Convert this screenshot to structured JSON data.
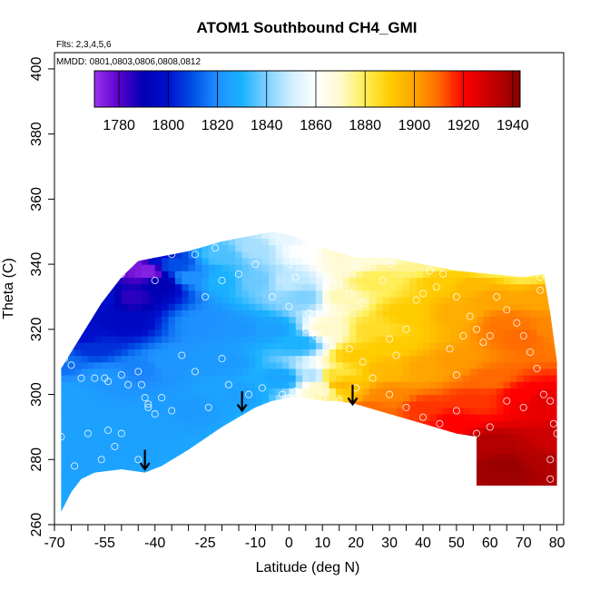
{
  "chart_data": {
    "type": "heatmap",
    "title": "ATOM1 Southbound CH4_GMI",
    "annotations": {
      "flights": "Flts: 2,3,4,5,6",
      "dates": "MMDD: 0801,0803,0806,0808,0812"
    },
    "xlabel": "Latitude (deg N)",
    "ylabel": "Theta (C)",
    "xlim": [
      -70,
      82
    ],
    "ylim": [
      260,
      405
    ],
    "x_tick_labels": [
      {
        "v": -70,
        "label": "-70"
      },
      {
        "v": -55,
        "label": "-55"
      },
      {
        "v": -40,
        "label": "-40"
      },
      {
        "v": -25,
        "label": "-25"
      },
      {
        "v": -10,
        "label": "-10"
      },
      {
        "v": 0,
        "label": "0"
      },
      {
        "v": 10,
        "label": "10"
      },
      {
        "v": 20,
        "label": "20"
      },
      {
        "v": 30,
        "label": "30"
      },
      {
        "v": 40,
        "label": "40"
      },
      {
        "v": 50,
        "label": "50"
      },
      {
        "v": 60,
        "label": "60"
      },
      {
        "v": 70,
        "label": "70"
      },
      {
        "v": 80,
        "label": "80"
      }
    ],
    "x_minor_ticks": [
      -65,
      -60,
      -50,
      -45,
      -35,
      -30,
      -20,
      -15,
      -5,
      5,
      15,
      25,
      35,
      45,
      55,
      65,
      75
    ],
    "y_tick_labels": [
      {
        "v": 260,
        "label": "260"
      },
      {
        "v": 280,
        "label": "280"
      },
      {
        "v": 300,
        "label": "300"
      },
      {
        "v": 320,
        "label": "320"
      },
      {
        "v": 340,
        "label": "340"
      },
      {
        "v": 360,
        "label": "360"
      },
      {
        "v": 380,
        "label": "380"
      },
      {
        "v": 400,
        "label": "400"
      }
    ],
    "colorbar": {
      "min": 1770,
      "max": 1943,
      "stops": [
        {
          "v": 1770,
          "c": "#9a33ee"
        },
        {
          "v": 1780,
          "c": "#5a00cc"
        },
        {
          "v": 1790,
          "c": "#0000b5"
        },
        {
          "v": 1800,
          "c": "#0010cc"
        },
        {
          "v": 1810,
          "c": "#0050e6"
        },
        {
          "v": 1820,
          "c": "#1e90ff"
        },
        {
          "v": 1830,
          "c": "#1ab2ff"
        },
        {
          "v": 1840,
          "c": "#7fd0ff"
        },
        {
          "v": 1850,
          "c": "#d0efff"
        },
        {
          "v": 1860,
          "c": "#ffffff"
        },
        {
          "v": 1870,
          "c": "#fffacd"
        },
        {
          "v": 1880,
          "c": "#ffee55"
        },
        {
          "v": 1890,
          "c": "#ffcc00"
        },
        {
          "v": 1900,
          "c": "#ffa500"
        },
        {
          "v": 1910,
          "c": "#ff6a00"
        },
        {
          "v": 1920,
          "c": "#ff0000"
        },
        {
          "v": 1930,
          "c": "#cc0000"
        },
        {
          "v": 1943,
          "c": "#8b0000"
        }
      ],
      "tick_labels": [
        {
          "v": 1780,
          "label": "1780"
        },
        {
          "v": 1800,
          "label": "1800"
        },
        {
          "v": 1820,
          "label": "1820"
        },
        {
          "v": 1840,
          "label": "1840"
        },
        {
          "v": 1860,
          "label": "1860"
        },
        {
          "v": 1880,
          "label": "1880"
        },
        {
          "v": 1900,
          "label": "1900"
        },
        {
          "v": 1920,
          "label": "1920"
        },
        {
          "v": 1940,
          "label": "1940"
        }
      ],
      "divider_values": [
        1780,
        1800,
        1820,
        1840,
        1860,
        1880,
        1900,
        1920,
        1940
      ]
    },
    "field": {
      "x_range": [
        -70,
        80
      ],
      "y_range": [
        264,
        352
      ],
      "cell_dx": 2,
      "cell_dy": 2,
      "upper_boundary": [
        [
          -68,
          308
        ],
        [
          -62,
          318
        ],
        [
          -56,
          328
        ],
        [
          -50,
          336
        ],
        [
          -45,
          341
        ],
        [
          -40,
          342
        ],
        [
          -30,
          344
        ],
        [
          -20,
          347
        ],
        [
          -10,
          349
        ],
        [
          -5,
          350
        ],
        [
          0,
          349
        ],
        [
          10,
          345
        ],
        [
          20,
          342
        ],
        [
          30,
          342
        ],
        [
          40,
          340
        ],
        [
          50,
          338
        ],
        [
          60,
          337
        ],
        [
          70,
          336
        ],
        [
          76,
          337
        ],
        [
          78,
          325
        ],
        [
          80,
          310
        ]
      ],
      "lower_boundary": [
        [
          -68,
          264
        ],
        [
          -65,
          270
        ],
        [
          -62,
          274
        ],
        [
          -58,
          276
        ],
        [
          -50,
          277
        ],
        [
          -43,
          276
        ],
        [
          -38,
          278
        ],
        [
          -30,
          283
        ],
        [
          -20,
          290
        ],
        [
          -10,
          296
        ],
        [
          -5,
          298
        ],
        [
          0,
          299
        ],
        [
          5,
          299
        ],
        [
          10,
          298
        ],
        [
          15,
          298
        ],
        [
          20,
          297
        ],
        [
          30,
          294
        ],
        [
          40,
          291
        ],
        [
          50,
          288
        ],
        [
          56,
          287
        ],
        [
          56,
          272
        ],
        [
          80,
          272
        ]
      ],
      "anchors": [
        [
          -45,
          340,
          1775
        ],
        [
          -42,
          338,
          1773
        ],
        [
          -48,
          330,
          1785
        ],
        [
          -50,
          322,
          1795
        ],
        [
          -60,
          318,
          1800
        ],
        [
          -38,
          334,
          1790
        ],
        [
          -40,
          342,
          1800
        ],
        [
          -35,
          340,
          1810
        ],
        [
          -30,
          336,
          1820
        ],
        [
          -20,
          343,
          1835
        ],
        [
          -10,
          345,
          1845
        ],
        [
          0,
          348,
          1855
        ],
        [
          -25,
          322,
          1820
        ],
        [
          -15,
          320,
          1822
        ],
        [
          -5,
          320,
          1825
        ],
        [
          -35,
          310,
          1822
        ],
        [
          -45,
          308,
          1818
        ],
        [
          -55,
          305,
          1822
        ],
        [
          -65,
          300,
          1825
        ],
        [
          -65,
          280,
          1825
        ],
        [
          -50,
          285,
          1825
        ],
        [
          -30,
          295,
          1823
        ],
        [
          -15,
          300,
          1825
        ],
        [
          -2,
          305,
          1826
        ],
        [
          3,
          316,
          1830
        ],
        [
          5,
          330,
          1840
        ],
        [
          5,
          345,
          1860
        ],
        [
          8,
          306,
          1845
        ],
        [
          10,
          302,
          1870
        ],
        [
          12,
          306,
          1885
        ],
        [
          15,
          303,
          1895
        ],
        [
          12,
          320,
          1870
        ],
        [
          15,
          330,
          1872
        ],
        [
          18,
          340,
          1868
        ],
        [
          25,
          335,
          1880
        ],
        [
          25,
          320,
          1885
        ],
        [
          30,
          315,
          1890
        ],
        [
          35,
          325,
          1890
        ],
        [
          40,
          340,
          1875
        ],
        [
          45,
          335,
          1890
        ],
        [
          50,
          325,
          1898
        ],
        [
          55,
          333,
          1895
        ],
        [
          60,
          330,
          1900
        ],
        [
          65,
          322,
          1908
        ],
        [
          70,
          318,
          1910
        ],
        [
          75,
          330,
          1900
        ],
        [
          78,
          320,
          1905
        ],
        [
          30,
          300,
          1905
        ],
        [
          25,
          295,
          1910
        ],
        [
          40,
          296,
          1915
        ],
        [
          50,
          292,
          1920
        ],
        [
          55,
          298,
          1915
        ],
        [
          60,
          305,
          1910
        ],
        [
          70,
          300,
          1920
        ],
        [
          75,
          298,
          1925
        ],
        [
          60,
          285,
          1935
        ],
        [
          65,
          278,
          1940
        ],
        [
          75,
          280,
          1935
        ],
        [
          80,
          285,
          1930
        ],
        [
          40,
          308,
          1900
        ],
        [
          50,
          310,
          1902
        ],
        [
          30,
          308,
          1895
        ],
        [
          20,
          312,
          1890
        ],
        [
          -55,
          330,
          1800
        ],
        [
          -58,
          315,
          1805
        ],
        [
          -68,
          310,
          1815
        ],
        [
          -62,
          290,
          1825
        ],
        [
          -40,
          290,
          1825
        ],
        [
          -20,
          310,
          1823
        ],
        [
          0,
          335,
          1848
        ],
        [
          -10,
          335,
          1838
        ],
        [
          -20,
          335,
          1830
        ],
        [
          15,
          345,
          1870
        ],
        [
          30,
          345,
          1865
        ],
        [
          60,
          340,
          1880
        ],
        [
          70,
          338,
          1880
        ]
      ]
    },
    "sample_points": [
      [
        -68,
        314
      ],
      [
        -67,
        311
      ],
      [
        -65,
        309
      ],
      [
        -62,
        305
      ],
      [
        -58,
        305
      ],
      [
        -55,
        305
      ],
      [
        -54,
        304
      ],
      [
        -50,
        306
      ],
      [
        -48,
        303
      ],
      [
        -45,
        307
      ],
      [
        -44,
        303
      ],
      [
        -43,
        299
      ],
      [
        -42,
        297
      ],
      [
        -42,
        296
      ],
      [
        -40,
        294
      ],
      [
        -38,
        299
      ],
      [
        -35,
        295
      ],
      [
        -32,
        312
      ],
      [
        -28,
        307
      ],
      [
        -24,
        296
      ],
      [
        -20,
        311
      ],
      [
        -18,
        303
      ],
      [
        -12,
        300
      ],
      [
        -8,
        302
      ],
      [
        -4,
        295
      ],
      [
        -2,
        300
      ],
      [
        0,
        299
      ],
      [
        2,
        301
      ],
      [
        -68,
        287
      ],
      [
        -64,
        278
      ],
      [
        -60,
        288
      ],
      [
        -56,
        280
      ],
      [
        -54,
        289
      ],
      [
        -52,
        284
      ],
      [
        -50,
        288
      ],
      [
        -45,
        280
      ],
      [
        -40,
        335
      ],
      [
        -38,
        345
      ],
      [
        -35,
        343
      ],
      [
        -25,
        330
      ],
      [
        -20,
        335
      ],
      [
        -15,
        337
      ],
      [
        -10,
        340
      ],
      [
        -5,
        330
      ],
      [
        0,
        340
      ],
      [
        2,
        336
      ],
      [
        -22,
        345
      ],
      [
        -28,
        343
      ],
      [
        -45,
        343
      ],
      [
        -50,
        337
      ],
      [
        0,
        327
      ],
      [
        5,
        320
      ],
      [
        6,
        325
      ],
      [
        8,
        318
      ],
      [
        12,
        328
      ],
      [
        15,
        334
      ],
      [
        18,
        331
      ],
      [
        20,
        340
      ],
      [
        22,
        328
      ],
      [
        25,
        340
      ],
      [
        28,
        335
      ],
      [
        30,
        317
      ],
      [
        32,
        312
      ],
      [
        35,
        320
      ],
      [
        38,
        329
      ],
      [
        40,
        331
      ],
      [
        42,
        338
      ],
      [
        44,
        333
      ],
      [
        46,
        337
      ],
      [
        48,
        314
      ],
      [
        50,
        330
      ],
      [
        52,
        318
      ],
      [
        54,
        324
      ],
      [
        56,
        320
      ],
      [
        58,
        316
      ],
      [
        60,
        318
      ],
      [
        62,
        330
      ],
      [
        65,
        326
      ],
      [
        68,
        322
      ],
      [
        70,
        318
      ],
      [
        72,
        313
      ],
      [
        74,
        308
      ],
      [
        76,
        300
      ],
      [
        78,
        298
      ],
      [
        79,
        291
      ],
      [
        80,
        288
      ],
      [
        78,
        280
      ],
      [
        78,
        274
      ],
      [
        56,
        288
      ],
      [
        40,
        293
      ],
      [
        45,
        291
      ],
      [
        50,
        295
      ],
      [
        30,
        300
      ],
      [
        20,
        302
      ],
      [
        15,
        298
      ],
      [
        10,
        299
      ],
      [
        35,
        296
      ],
      [
        65,
        298
      ],
      [
        70,
        296
      ],
      [
        75,
        336
      ],
      [
        60,
        290
      ],
      [
        25,
        305
      ],
      [
        22,
        310
      ],
      [
        18,
        314
      ],
      [
        12,
        315
      ],
      [
        30,
        340
      ],
      [
        45,
        345
      ],
      [
        60,
        340
      ],
      [
        75,
        332
      ],
      [
        50,
        306
      ]
    ],
    "arrows": [
      {
        "x": -43,
        "y_top": 283,
        "y_bottom": 277
      },
      {
        "x": -14,
        "y_top": 301,
        "y_bottom": 295
      },
      {
        "x": 19,
        "y_top": 303,
        "y_bottom": 297
      }
    ]
  }
}
